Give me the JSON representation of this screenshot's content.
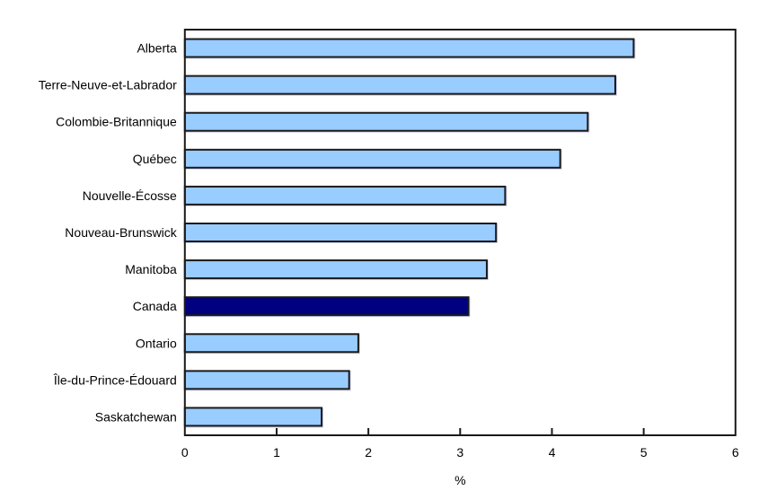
{
  "chart_data": {
    "type": "bar",
    "orientation": "horizontal",
    "title": "",
    "categories": [
      "Alberta",
      "Terre-Neuve-et-Labrador",
      "Colombie-Britannique",
      "Québec",
      "Nouvelle-Écosse",
      "Nouveau-Brunswick",
      "Manitoba",
      "Canada",
      "Ontario",
      "Île-du-Prince-Édouard",
      "Saskatchewan"
    ],
    "values": [
      4.9,
      4.7,
      4.4,
      4.1,
      3.5,
      3.4,
      3.3,
      3.1,
      1.9,
      1.8,
      1.5
    ],
    "highlight_category": "Canada",
    "xlabel": "%",
    "ylabel": "",
    "xlim": [
      0,
      6
    ],
    "xticks": [
      "0",
      "1",
      "2",
      "3",
      "4",
      "5",
      "6"
    ],
    "grid": false,
    "legend": "none",
    "colors": {
      "bar_fill": "#99CCFF",
      "highlight_fill": "#000080",
      "bar_border": "#1A1A1A",
      "axis_frame": "#1A1A1A",
      "text": "#000000",
      "background": "#FFFFFF"
    }
  }
}
